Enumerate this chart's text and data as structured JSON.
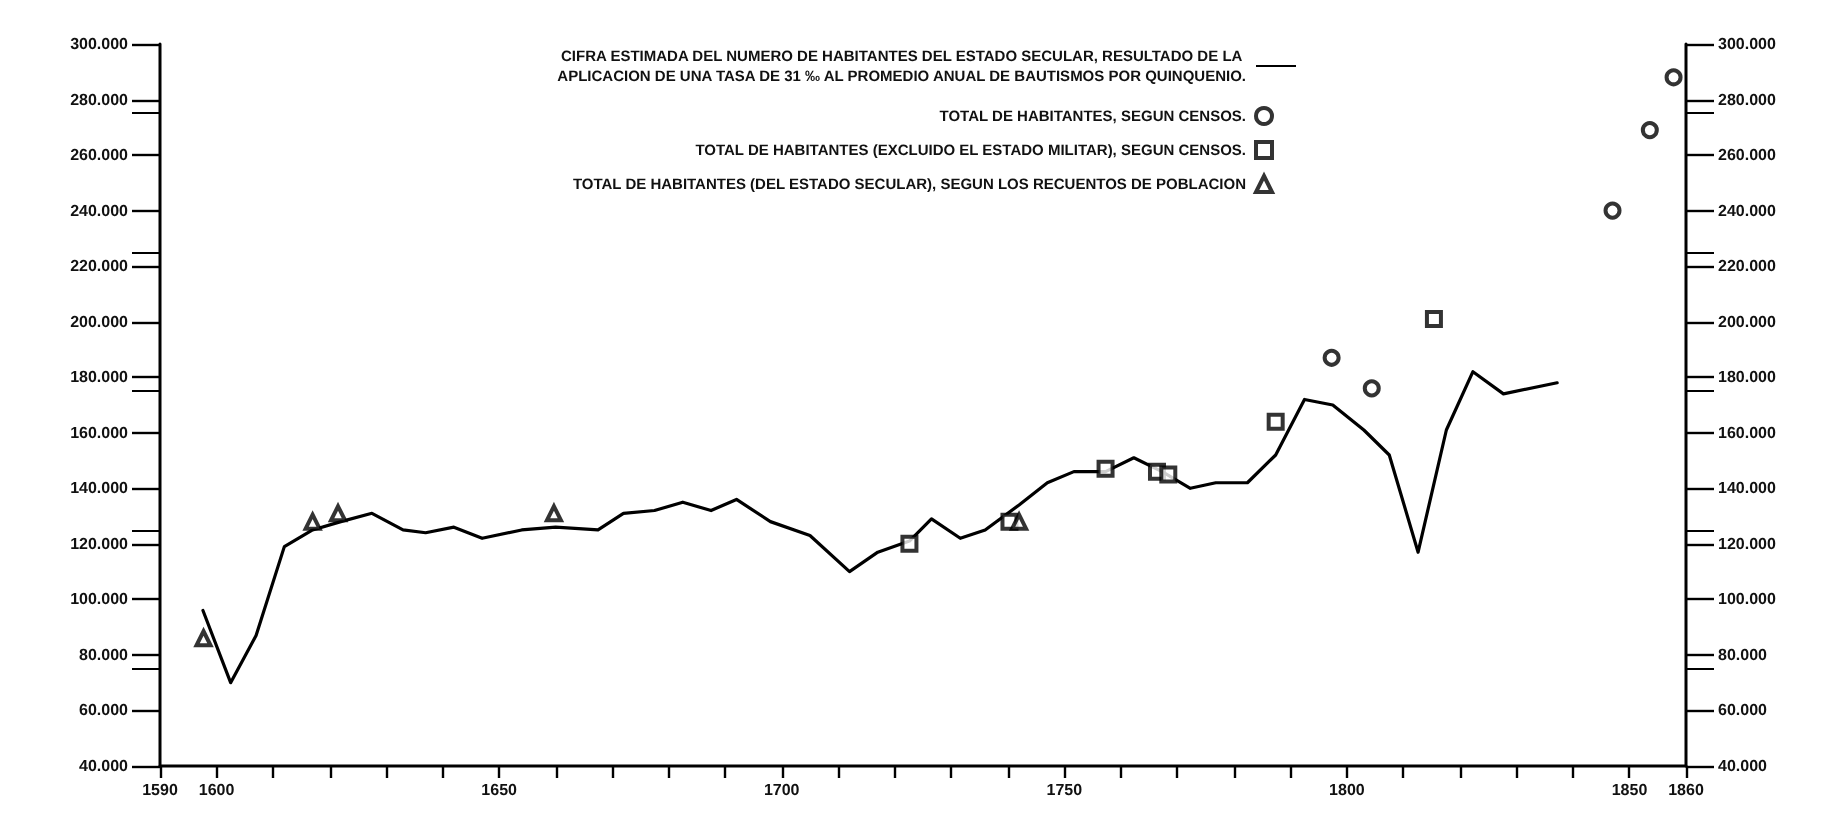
{
  "chart_data": {
    "type": "line",
    "xlim": [
      1590,
      1860
    ],
    "ylim": [
      40000,
      300000
    ],
    "y2lim": [
      40000,
      300000
    ],
    "xticks": [
      1590,
      1600,
      {
        "value": 1610,
        "label": null
      },
      {
        "value": 1620,
        "label": null
      },
      {
        "value": 1630,
        "label": null
      },
      {
        "value": 1640,
        "label": null
      },
      1650,
      {
        "value": 1660,
        "label": null
      },
      {
        "value": 1670,
        "label": null
      },
      {
        "value": 1680,
        "label": null
      },
      {
        "value": 1690,
        "label": null
      },
      1700,
      {
        "value": 1710,
        "label": null
      },
      {
        "value": 1720,
        "label": null
      },
      {
        "value": 1730,
        "label": null
      },
      {
        "value": 1740,
        "label": null
      },
      1750,
      {
        "value": 1760,
        "label": null
      },
      {
        "value": 1770,
        "label": null
      },
      {
        "value": 1780,
        "label": null
      },
      {
        "value": 1790,
        "label": null
      },
      1800,
      {
        "value": 1810,
        "label": null
      },
      {
        "value": 1820,
        "label": null
      },
      {
        "value": 1830,
        "label": null
      },
      {
        "value": 1840,
        "label": null
      },
      1850,
      1860
    ],
    "yticks": [
      {
        "value": 40000,
        "label": "40.000"
      },
      {
        "value": 60000,
        "label": "60.000"
      },
      {
        "value": 80000,
        "label": "80.000"
      },
      {
        "value": 100000,
        "label": "100.000"
      },
      {
        "value": 120000,
        "label": "120.000"
      },
      {
        "value": 140000,
        "label": "140.000"
      },
      {
        "value": 160000,
        "label": "160.000"
      },
      {
        "value": 180000,
        "label": "180.000"
      },
      {
        "value": 200000,
        "label": "200.000"
      },
      {
        "value": 220000,
        "label": "220.000"
      },
      {
        "value": 240000,
        "label": "240.000"
      },
      {
        "value": 260000,
        "label": "260.000"
      },
      {
        "value": 280000,
        "label": "280.000"
      },
      {
        "value": 300000,
        "label": "300.000"
      }
    ],
    "y2ticks": [
      {
        "value": 40000,
        "label": "40.000"
      },
      {
        "value": 60000,
        "label": "60.000"
      },
      {
        "value": 80000,
        "label": "80.000"
      },
      {
        "value": 100000,
        "label": "100.000"
      },
      {
        "value": 120000,
        "label": "120.000"
      },
      {
        "value": 140000,
        "label": "140.000"
      },
      {
        "value": 160000,
        "label": "160.000"
      },
      {
        "value": 180000,
        "label": "180.000"
      },
      {
        "value": 200000,
        "label": "200.000"
      },
      {
        "value": 220000,
        "label": "220.000"
      },
      {
        "value": 240000,
        "label": "240.000"
      },
      {
        "value": 260000,
        "label": "260.000"
      },
      {
        "value": 280000,
        "label": "280.000"
      },
      {
        "value": 300000,
        "label": "300.000"
      }
    ],
    "grid": false,
    "legend": "top",
    "series": [
      {
        "name": "CIFRA ESTIMADA DEL NUMERO DE HABITANTES DEL ESTADO SECULAR, RESULTADO DE LA APLICACION DE UNA TASA DE 31 ‰ AL PROMEDIO ANUAL DE BAUTISMOS POR QUINQUENIO.",
        "color": "#000000",
        "marker": "none",
        "line_style": "solid",
        "x": [
          1597.6,
          1602.5,
          1607,
          1612,
          1617,
          1622,
          1627.5,
          1633,
          1637,
          1642,
          1647,
          1654,
          1660,
          1667.5,
          1672,
          1677.5,
          1682.5,
          1687.5,
          1692,
          1698,
          1705,
          1712,
          1717,
          1722.6,
          1726.5,
          1731.6,
          1736,
          1742,
          1747,
          1751.7,
          1757.3,
          1762.3,
          1767.3,
          1772.3,
          1776.8,
          1782.4,
          1787.4,
          1792.5,
          1797.5,
          1803,
          1807.5,
          1812.6,
          1817.6,
          1822.3,
          1827.7,
          1837.2
        ],
        "values": [
          96000,
          70000,
          87000,
          119000,
          125000,
          128000,
          131000,
          125000,
          124000,
          126000,
          122000,
          125000,
          126000,
          125000,
          131000,
          132000,
          135000,
          132000,
          136000,
          128000,
          123000,
          110000,
          117000,
          121000,
          129000,
          122000,
          125000,
          134000,
          142000,
          146000,
          146000,
          151000,
          146000,
          140000,
          142000,
          142000,
          152000,
          172000,
          170000,
          161000,
          152000,
          117000,
          161000,
          182000,
          174000,
          178000
        ]
      },
      {
        "name": "TOTAL DE HABITANTES, SEGUN CENSOS.",
        "type": "scatter",
        "color": "#000000",
        "marker": "circle",
        "x": [
          1797.3,
          1804.4,
          1847,
          1853.6,
          1857.8
        ],
        "values": [
          187000,
          176000,
          240000,
          269000,
          288000
        ]
      },
      {
        "name": "TOTAL DE HABITANTES (EXCLUIDO EL ESTADO MILITAR), SEGUN CENSOS.",
        "type": "scatter",
        "color": "#000000",
        "marker": "square",
        "x": [
          1722.6,
          1740.3,
          1757.3,
          1766.4,
          1768.4,
          1787.4,
          1815.4
        ],
        "values": [
          120000,
          128000,
          147000,
          146000,
          145000,
          164000,
          201000
        ]
      },
      {
        "name": "TOTAL DE HABITANTES (DEL ESTADO SECULAR), SEGUN LOS RECUENTOS DE POBLACION",
        "type": "scatter",
        "color": "#000000",
        "marker": "triangle",
        "x": [
          1597.7,
          1617,
          1621.5,
          1659.7,
          1742
        ],
        "values": [
          86000,
          128000,
          131000,
          131000,
          128000
        ]
      }
    ]
  }
}
